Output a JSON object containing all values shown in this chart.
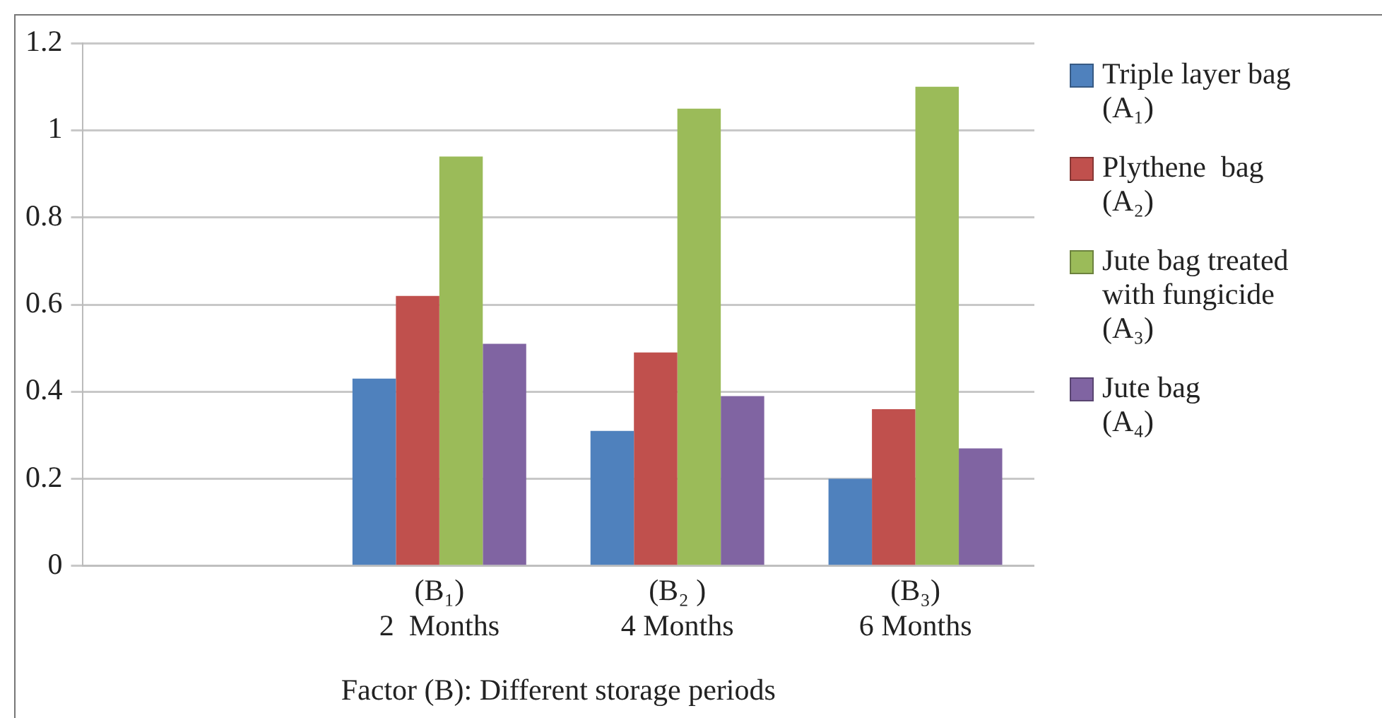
{
  "chart_data": {
    "type": "bar",
    "xlabel": "Factor (B): Different storage periods",
    "categories": [
      null,
      "(B₁)\n2  Months",
      "(B₂ )\n4 Months",
      "(B₃)\n6 Months"
    ],
    "series": [
      {
        "name": "Triple layer bag\n(A₁)",
        "color": "#4f81bd",
        "values": [
          null,
          0.43,
          0.31,
          0.2
        ]
      },
      {
        "name": "Plythene  bag\n(A₂)",
        "color": "#c0504d",
        "values": [
          null,
          0.62,
          0.49,
          0.36
        ]
      },
      {
        "name": "Jute bag treated\nwith fungicide\n(A₃)",
        "color": "#9bbb59",
        "values": [
          null,
          0.94,
          1.05,
          1.1
        ]
      },
      {
        "name": "Jute bag\n(A₄)",
        "color": "#8064a2",
        "values": [
          null,
          0.51,
          0.39,
          0.27
        ]
      }
    ],
    "ylim": [
      0,
      1.2
    ],
    "yticks": [
      0,
      0.2,
      0.4,
      0.6,
      0.8,
      1,
      1.2
    ],
    "grid": "y",
    "legend": "right"
  }
}
